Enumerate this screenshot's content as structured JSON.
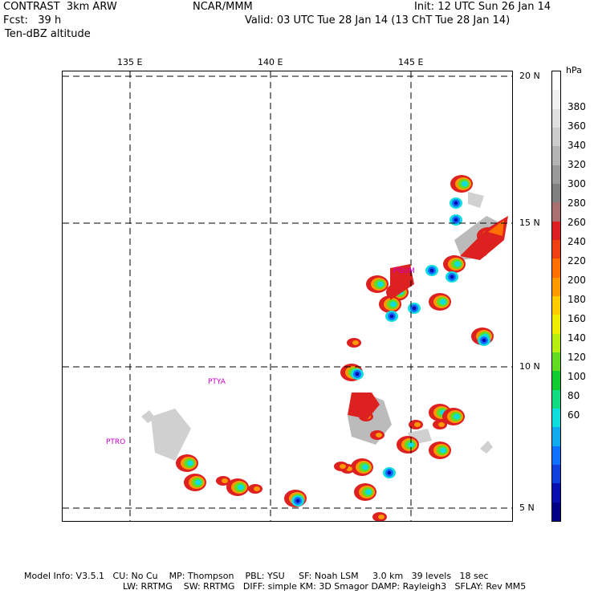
{
  "header": {
    "title": "CONTRAST  3km ARW",
    "org": "NCAR/MMM",
    "init": "Init: 12 UTC Sun 26 Jan 14",
    "fcst": "Fcst:   39 h",
    "valid": "Valid: 03 UTC Tue 28 Jan 14 (13 ChT Tue 28 Jan 14)",
    "field": "Ten-dBZ altitude"
  },
  "map": {
    "lon_labels": [
      "135 E",
      "140 E",
      "145 E"
    ],
    "lat_labels": [
      "20 N",
      "15 N",
      "10 N",
      "5 N"
    ],
    "stations": [
      "PTYA",
      "PTRO",
      "PGUM"
    ]
  },
  "colorbar": {
    "unit": "hPa",
    "labels": [
      "380",
      "360",
      "340",
      "320",
      "300",
      "280",
      "260",
      "240",
      "220",
      "200",
      "180",
      "160",
      "140",
      "120",
      "100",
      "80",
      "60"
    ],
    "colors": [
      "#ffffff",
      "#f0f0f0",
      "#e0e0e0",
      "#cccccc",
      "#b4b4b4",
      "#9a9a9a",
      "#808080",
      "#a87070",
      "#dd2020",
      "#ee4010",
      "#ff7000",
      "#ff9900",
      "#ffcc00",
      "#eeee00",
      "#b8ee10",
      "#60dd20",
      "#10cc30",
      "#10dd80",
      "#10dddd",
      "#10aaee",
      "#1070ff",
      "#1040dd",
      "#0a10b0",
      "#000088"
    ]
  },
  "footer": {
    "line1": "Model Info: V3.5.1   CU: No Cu    MP: Thompson    PBL: YSU     SF: Noah LSM     3.0 km   39 levels   18 sec",
    "line2": "LW: RRTMG    SW: RRTMG   DIFF: simple KM: 3D Smagor DAMP: Rayleigh3   SFLAY: Rev MM5"
  }
}
